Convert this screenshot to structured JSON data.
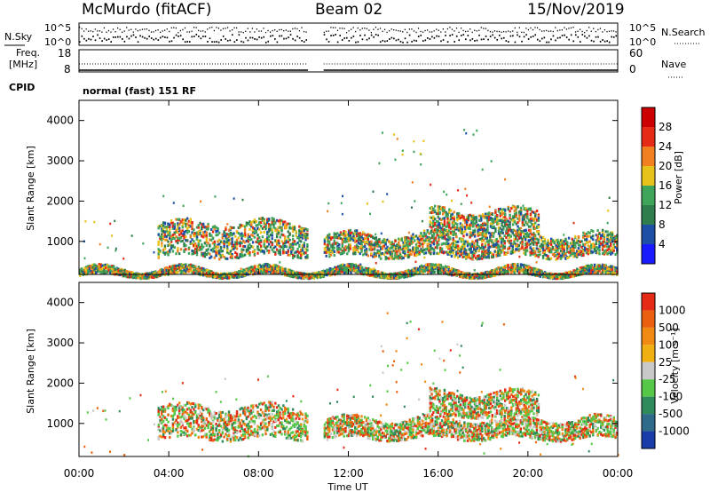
{
  "header": {
    "station": "McMurdo (fitACF)",
    "beam": "Beam 02",
    "date": "15/Nov/2019"
  },
  "top_panel": {
    "left_label": "N.Sky",
    "left_ticks": [
      "10^5",
      "10^0"
    ],
    "right_ticks": [
      "10^5",
      "10^0"
    ],
    "right_label": "N.Search"
  },
  "freq_panel": {
    "left_label_line1": "Freq.",
    "left_label_line2": "[MHz]",
    "left_ticks": [
      "18",
      "8"
    ],
    "right_ticks": [
      "60",
      "0"
    ],
    "right_label": "Nave",
    "cpid_label": "CPID",
    "mode_text": "normal (fast) 151 RF"
  },
  "colors": {
    "pow_blue": "#2233dd",
    "pow_navy": "#1d4fa6",
    "pow_dgreen": "#2e7d4d",
    "pow_green": "#3fa55a",
    "pow_yellow": "#e7c21a",
    "pow_orange": "#f08020",
    "pow_red": "#e52a16",
    "vel_green": "#55c848",
    "vel_dgreen": "#2e8a5a",
    "vel_orange": "#f08a12",
    "vel_dorange": "#e86010",
    "vel_red": "#e52a16",
    "vel_grey": "#c8c8c8"
  },
  "chart_data": [
    {
      "type": "heatmap",
      "name": "power",
      "ylabel": "Slant Range [km]",
      "y_ticks": [
        "4000",
        "3000",
        "2000",
        "1000"
      ],
      "y_tick_values": [
        4000,
        3000,
        2000,
        1000
      ],
      "ylim": [
        180,
        4500
      ],
      "x_ticks": [
        "00:00",
        "04:00",
        "08:00",
        "12:00",
        "16:00",
        "20:00",
        "00:00"
      ],
      "xlim_hours": [
        0,
        24
      ],
      "data_gap_hours": [
        10.2,
        10.9
      ],
      "colorbar": {
        "label": "Power [dB]",
        "ticks": [
          "28",
          "24",
          "20",
          "16",
          "12",
          "8",
          "4"
        ],
        "range": [
          0,
          32
        ],
        "colors": [
          "#1a1aff",
          "#1d4fa6",
          "#2e7d4d",
          "#3fa55a",
          "#e7c21a",
          "#f08020",
          "#e52a16",
          "#cc0000"
        ]
      },
      "echo_bands": [
        {
          "t_start": 0.0,
          "t_end": 24.0,
          "range_low": 180,
          "range_high": 350,
          "value_db": 6
        },
        {
          "t_start": 3.5,
          "t_end": 10.2,
          "range_low": 650,
          "range_high": 1500,
          "value_db": 14
        },
        {
          "t_start": 10.9,
          "t_end": 24.0,
          "range_low": 650,
          "range_high": 1200,
          "value_db": 16
        },
        {
          "t_start": 15.6,
          "t_end": 20.5,
          "range_low": 1200,
          "range_high": 1800,
          "value_db": 14
        }
      ]
    },
    {
      "type": "heatmap",
      "name": "velocity",
      "ylabel": "Slant Range [km]",
      "y_ticks": [
        "4000",
        "3000",
        "2000",
        "1000"
      ],
      "y_tick_values": [
        4000,
        3000,
        2000,
        1000
      ],
      "ylim": [
        180,
        4500
      ],
      "x_ticks": [
        "00:00",
        "04:00",
        "08:00",
        "12:00",
        "16:00",
        "20:00",
        "00:00"
      ],
      "xlim_hours": [
        0,
        24
      ],
      "xlabel": "Time UT",
      "data_gap_hours": [
        10.2,
        10.9
      ],
      "colorbar": {
        "label": "Velocity [m s⁻¹]",
        "ticks": [
          "1000",
          "500",
          "100",
          "25",
          "-25",
          "-100",
          "-500",
          "-1000"
        ],
        "colors": [
          "#1a3ca8",
          "#2e6a8a",
          "#2e8a5a",
          "#55c848",
          "#c8c8c8",
          "#f0b012",
          "#f08a12",
          "#e86010",
          "#e52a16"
        ]
      },
      "echo_bands": [
        {
          "t_start": 3.5,
          "t_end": 10.2,
          "range_low": 650,
          "range_high": 1450,
          "velocity": 120
        },
        {
          "t_start": 10.9,
          "t_end": 24.0,
          "range_low": 650,
          "range_high": 1150,
          "velocity": -150
        },
        {
          "t_start": 15.6,
          "t_end": 20.5,
          "range_low": 1200,
          "range_high": 1800,
          "velocity": -120
        }
      ]
    }
  ]
}
